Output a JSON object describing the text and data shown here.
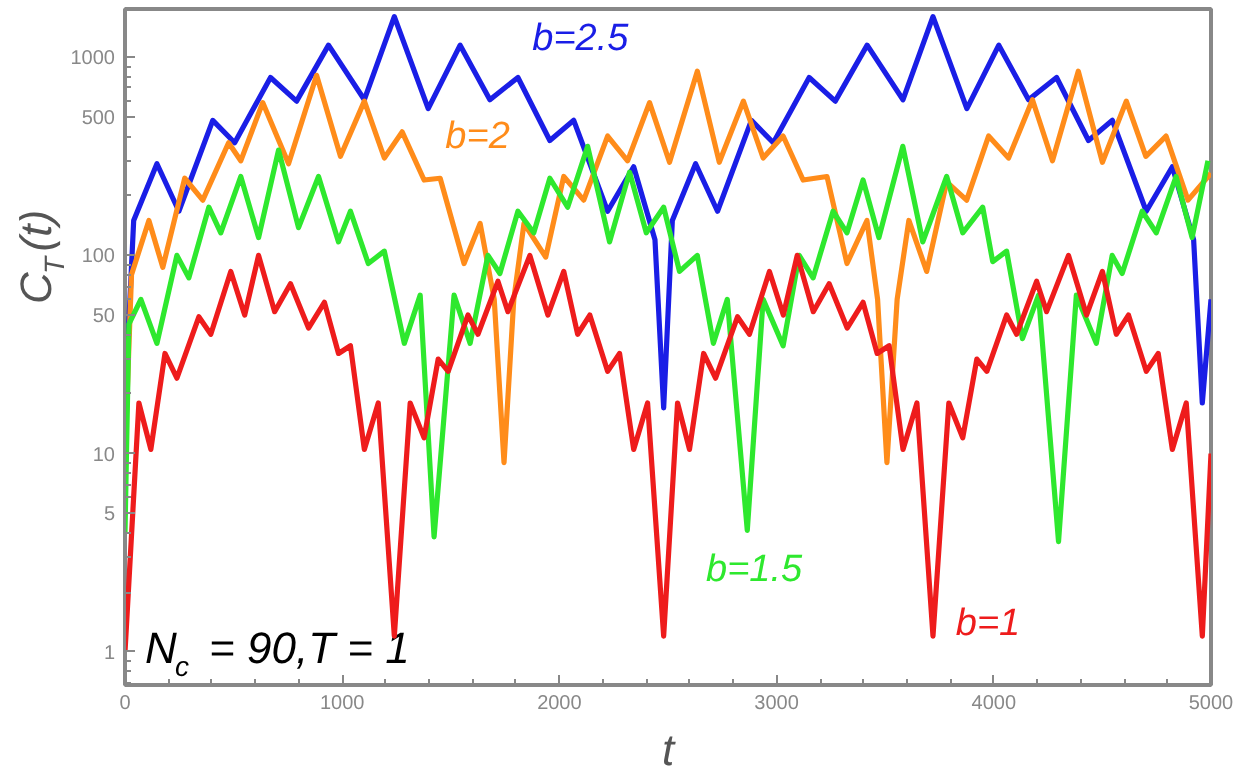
{
  "chart_data": {
    "type": "line",
    "xlabel": "t",
    "ylabel": "C$_{T}$(t)",
    "log": "y",
    "grid": false,
    "legend": false,
    "marker": "none",
    "line_style": "solid",
    "xlim": [
      0,
      5000
    ],
    "xticks": [
      0,
      1000,
      2000,
      3000,
      4000,
      5000
    ],
    "ylim": [
      0.68,
      1750
    ],
    "yticks": [
      1,
      5,
      10,
      50,
      100,
      500,
      1000
    ],
    "annotations": [
      "N$_{c}$ = 90,T = 1"
    ],
    "series": [
      {
        "name": "b=2.5",
        "color": "#1a1ee6",
        "x": [
          0,
          40,
          147,
          248,
          404,
          505,
          670,
          790,
          937,
          1102,
          1240,
          1396,
          1543,
          1680,
          1809,
          1956,
          2066,
          2222,
          2342,
          2440,
          2480,
          2520,
          2627,
          2728,
          2884,
          2985,
          3150,
          3270,
          3417,
          3582,
          3720,
          3876,
          4023,
          4160,
          4289,
          4436,
          4546,
          4702,
          4822,
          4920,
          4960,
          5000
        ],
        "values": [
          18,
          150,
          290,
          167,
          480,
          370,
          790,
          600,
          1150,
          610,
          1600,
          550,
          1150,
          610,
          790,
          380,
          480,
          167,
          280,
          120,
          17,
          150,
          290,
          167,
          480,
          370,
          790,
          600,
          1150,
          610,
          1600,
          550,
          1150,
          610,
          790,
          380,
          480,
          167,
          280,
          120,
          18,
          60
        ]
      },
      {
        "name": "b=2",
        "color": "#ff8c1a",
        "x": [
          0,
          30,
          110,
          174,
          275,
          358,
          477,
          533,
          634,
          753,
          882,
          992,
          1102,
          1194,
          1276,
          1377,
          1451,
          1561,
          1635,
          1700,
          1745,
          1790,
          1837,
          1937,
          2020,
          2112,
          2222,
          2314,
          2415,
          2507,
          2635,
          2736,
          2847,
          2938,
          3030,
          3122,
          3232,
          3324,
          3416,
          3465,
          3508,
          3555,
          3609,
          3691,
          3783,
          3875,
          3976,
          4068,
          4178,
          4270,
          4389,
          4500,
          4610,
          4700,
          4793,
          4894,
          5000
        ],
        "values": [
          10,
          80,
          150,
          87,
          245,
          190,
          370,
          300,
          590,
          290,
          810,
          316,
          600,
          310,
          420,
          240,
          245,
          91,
          145,
          60,
          9,
          60,
          145,
          98,
          250,
          190,
          400,
          300,
          590,
          295,
          850,
          295,
          600,
          310,
          400,
          240,
          250,
          91,
          150,
          60,
          9,
          60,
          150,
          83,
          235,
          190,
          400,
          310,
          610,
          300,
          850,
          295,
          600,
          316,
          400,
          190,
          260
        ]
      },
      {
        "name": "b=1.5",
        "color": "#2ee82e",
        "x": [
          0,
          18,
          73,
          147,
          239,
          294,
          386,
          441,
          533,
          615,
          707,
          799,
          891,
          983,
          1038,
          1120,
          1194,
          1286,
          1359,
          1423,
          1515,
          1589,
          1671,
          1726,
          1809,
          1882,
          1956,
          2038,
          2130,
          2231,
          2323,
          2400,
          2480,
          2553,
          2635,
          2709,
          2773,
          2865,
          2938,
          3030,
          3104,
          3168,
          3260,
          3324,
          3398,
          3471,
          3581,
          3673,
          3783,
          3857,
          3949,
          3995,
          4059,
          4132,
          4206,
          4298,
          4380,
          4472,
          4545,
          4591,
          4683,
          4748,
          4839,
          4913,
          4986
        ],
        "values": [
          4,
          45,
          60,
          36,
          100,
          77,
          175,
          130,
          250,
          123,
          340,
          138,
          250,
          117,
          167,
          91,
          105,
          36,
          63,
          3.8,
          63,
          36,
          100,
          81,
          167,
          130,
          245,
          175,
          355,
          117,
          263,
          130,
          175,
          83,
          100,
          36,
          60,
          4.1,
          60,
          35,
          100,
          77,
          167,
          130,
          240,
          123,
          355,
          117,
          250,
          130,
          175,
          93,
          105,
          38,
          63,
          3.6,
          63,
          36,
          100,
          81,
          167,
          130,
          250,
          123,
          300
        ]
      },
      {
        "name": "b=1",
        "color": "#ee1c1c",
        "x": [
          0,
          64,
          119,
          184,
          239,
          340,
          395,
          487,
          551,
          615,
          689,
          762,
          845,
          918,
          983,
          1038,
          1102,
          1166,
          1240,
          1313,
          1377,
          1442,
          1488,
          1579,
          1625,
          1717,
          1763,
          1864,
          1947,
          2020,
          2084,
          2140,
          2222,
          2277,
          2342,
          2406,
          2480,
          2544,
          2599,
          2664,
          2719,
          2820,
          2875,
          2967,
          3031,
          3095,
          3169,
          3242,
          3325,
          3398,
          3463,
          3518,
          3582,
          3646,
          3720,
          3793,
          3857,
          3922,
          3968,
          4059,
          4105,
          4197,
          4243,
          4344,
          4427,
          4500,
          4564,
          4620,
          4702,
          4757,
          4822,
          4886,
          4960,
          5000
        ],
        "values": [
          1,
          18,
          10.5,
          32,
          24,
          49,
          40,
          83,
          50,
          100,
          52,
          72,
          43,
          58,
          32,
          35,
          10.5,
          18,
          1.2,
          18,
          12,
          30,
          26,
          50,
          40,
          74,
          52,
          100,
          50,
          83,
          40,
          50,
          26,
          32,
          10.5,
          18,
          1.2,
          18,
          10.5,
          32,
          24,
          49,
          40,
          83,
          50,
          100,
          52,
          72,
          43,
          58,
          32,
          35,
          10.5,
          18,
          1.2,
          18,
          12,
          30,
          26,
          50,
          40,
          74,
          52,
          100,
          50,
          83,
          40,
          50,
          26,
          32,
          10.5,
          18,
          1.2,
          10
        ]
      }
    ]
  }
}
